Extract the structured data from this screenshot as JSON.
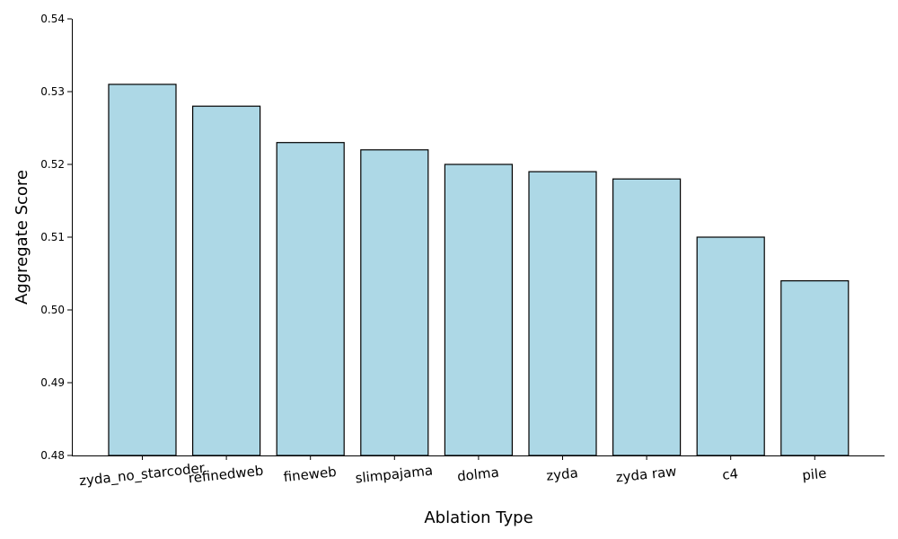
{
  "chart_data": {
    "type": "bar",
    "title": "",
    "xlabel": "Ablation Type",
    "ylabel": "Aggregate Score",
    "categories": [
      "zyda_no_starcoder",
      "refinedweb",
      "fineweb",
      "slimpajama",
      "dolma",
      "zyda",
      "zyda raw",
      "c4",
      "pile"
    ],
    "values": [
      0.531,
      0.528,
      0.523,
      0.522,
      0.52,
      0.519,
      0.518,
      0.51,
      0.504
    ],
    "ylim": [
      0.48,
      0.54
    ],
    "yticks": [
      0.48,
      0.49,
      0.5,
      0.51,
      0.52,
      0.53,
      0.54
    ],
    "ytick_labels": [
      "0.48",
      "0.49",
      "0.50",
      "0.51",
      "0.52",
      "0.53",
      "0.54"
    ],
    "grid": false,
    "legend": "none",
    "bar_color": "#add8e6",
    "edge_color": "#000000"
  }
}
